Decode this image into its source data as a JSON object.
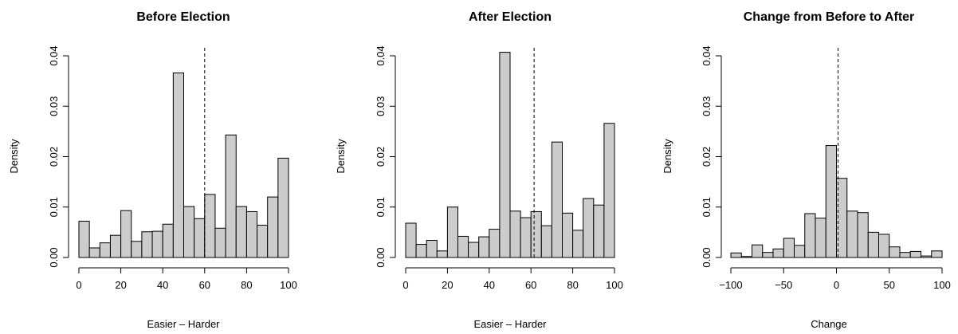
{
  "chart_data": [
    {
      "type": "bar",
      "title": "Before Election",
      "xlabel": "Easier – Harder",
      "ylabel": "Density",
      "xlim": [
        0,
        100
      ],
      "ylim": [
        0,
        0.04
      ],
      "xticks": [
        0,
        20,
        40,
        60,
        80,
        100
      ],
      "yticks": [
        "0.00",
        "0.01",
        "0.02",
        "0.03",
        "0.04"
      ],
      "bin_start": 0,
      "bin_width": 5,
      "values": [
        0.0072,
        0.0019,
        0.0029,
        0.0044,
        0.0093,
        0.0032,
        0.0051,
        0.0052,
        0.0066,
        0.0366,
        0.0101,
        0.0077,
        0.0125,
        0.0058,
        0.0243,
        0.0101,
        0.0091,
        0.0064,
        0.012,
        0.0197
      ],
      "reference_line_x": 60
    },
    {
      "type": "bar",
      "title": "After Election",
      "xlabel": "Easier – Harder",
      "ylabel": "Density",
      "xlim": [
        0,
        100
      ],
      "ylim": [
        0,
        0.04
      ],
      "xticks": [
        0,
        20,
        40,
        60,
        80,
        100
      ],
      "yticks": [
        "0.00",
        "0.01",
        "0.02",
        "0.03",
        "0.04"
      ],
      "bin_start": 0,
      "bin_width": 5,
      "values": [
        0.0068,
        0.0026,
        0.0034,
        0.0013,
        0.01,
        0.0042,
        0.003,
        0.0041,
        0.0056,
        0.0407,
        0.0092,
        0.0079,
        0.0091,
        0.0063,
        0.0229,
        0.0088,
        0.0054,
        0.0117,
        0.0104,
        0.0266
      ],
      "reference_line_x": 61.5
    },
    {
      "type": "bar",
      "title": "Change from Before to After",
      "xlabel": "Change",
      "ylabel": "Density",
      "xlim": [
        -100,
        100
      ],
      "ylim": [
        0,
        0.04
      ],
      "xticks": [
        -100,
        -50,
        0,
        50,
        100
      ],
      "xtick_labels": [
        "−100",
        "−50",
        "0",
        "50",
        "100"
      ],
      "yticks": [
        "0.00",
        "0.01",
        "0.02",
        "0.03",
        "0.04"
      ],
      "bin_start": -100,
      "bin_width": 10,
      "values": [
        0.0009,
        0.0002,
        0.0025,
        0.001,
        0.0017,
        0.0038,
        0.0024,
        0.0087,
        0.0078,
        0.0222,
        0.0157,
        0.0092,
        0.0089,
        0.005,
        0.0046,
        0.0021,
        0.001,
        0.0012,
        0.0003,
        0.0013
      ],
      "reference_line_x": 1.5
    }
  ]
}
